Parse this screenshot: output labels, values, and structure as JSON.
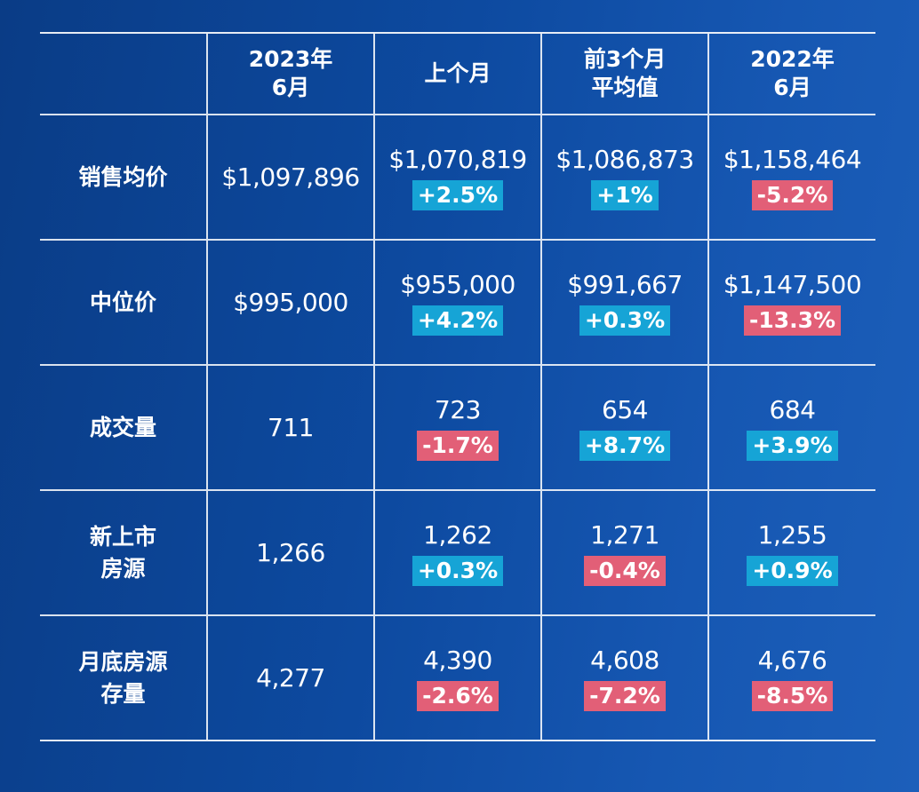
{
  "colors": {
    "background": "#0d4aa0",
    "increase_badge": "#16a4d6",
    "decrease_badge": "#e25f77",
    "grid_line": "#ffffff"
  },
  "chart_data": {
    "type": "table",
    "columns": [
      "",
      "2023年\n6月",
      "上个月",
      "前3个月\n平均值",
      "2022年\n6月"
    ],
    "rows": [
      {
        "label": "销售均价",
        "current": "$1,097,896",
        "comparisons": [
          {
            "value": "$1,070,819",
            "change": "+2.5%",
            "direction": "up"
          },
          {
            "value": "$1,086,873",
            "change": "+1%",
            "direction": "up"
          },
          {
            "value": "$1,158,464",
            "change": "-5.2%",
            "direction": "down"
          }
        ]
      },
      {
        "label": "中位价",
        "current": "$995,000",
        "comparisons": [
          {
            "value": "$955,000",
            "change": "+4.2%",
            "direction": "up"
          },
          {
            "value": "$991,667",
            "change": "+0.3%",
            "direction": "up"
          },
          {
            "value": "$1,147,500",
            "change": "-13.3%",
            "direction": "down"
          }
        ]
      },
      {
        "label": "成交量",
        "current": "711",
        "comparisons": [
          {
            "value": "723",
            "change": "-1.7%",
            "direction": "down"
          },
          {
            "value": "654",
            "change": "+8.7%",
            "direction": "up"
          },
          {
            "value": "684",
            "change": "+3.9%",
            "direction": "up"
          }
        ]
      },
      {
        "label": "新上市\n房源",
        "current": "1,266",
        "comparisons": [
          {
            "value": "1,262",
            "change": "+0.3%",
            "direction": "up"
          },
          {
            "value": "1,271",
            "change": "-0.4%",
            "direction": "down"
          },
          {
            "value": "1,255",
            "change": "+0.9%",
            "direction": "up"
          }
        ]
      },
      {
        "label": "月底房源\n存量",
        "current": "4,277",
        "comparisons": [
          {
            "value": "4,390",
            "change": "-2.6%",
            "direction": "down"
          },
          {
            "value": "4,608",
            "change": "-7.2%",
            "direction": "down"
          },
          {
            "value": "4,676",
            "change": "-8.5%",
            "direction": "down"
          }
        ]
      }
    ]
  }
}
